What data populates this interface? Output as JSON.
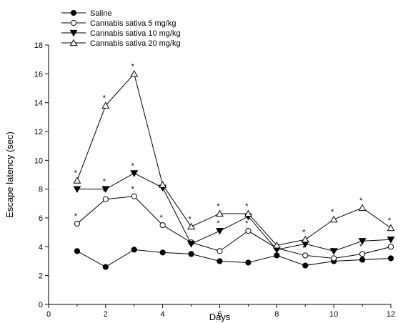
{
  "chart_data": {
    "type": "line",
    "title": "",
    "xlabel": "Days",
    "ylabel": "Escape latency (sec)",
    "xlim": [
      0,
      12
    ],
    "ylim": [
      0,
      18
    ],
    "xticks": [
      0,
      2,
      4,
      6,
      8,
      10,
      12
    ],
    "yticks": [
      0,
      2,
      4,
      6,
      8,
      10,
      12,
      14,
      16,
      18
    ],
    "grid": false,
    "legend": "top-left",
    "x": [
      1,
      2,
      3,
      4,
      5,
      6,
      7,
      8,
      9,
      10,
      11,
      12
    ],
    "series": [
      {
        "name": "Saline",
        "marker": "filled-circle",
        "values": [
          3.7,
          2.6,
          3.8,
          3.6,
          3.5,
          3.0,
          2.9,
          3.4,
          2.7,
          3.0,
          3.1,
          3.2
        ],
        "significance": [
          "",
          "",
          "",
          "",
          "",
          "",
          "",
          "",
          "",
          "",
          "",
          ""
        ]
      },
      {
        "name": "Cannabis sativa 5 mg/kg",
        "marker": "open-circle",
        "values": [
          5.6,
          7.3,
          7.5,
          5.5,
          4.3,
          3.7,
          5.1,
          3.9,
          3.4,
          3.2,
          3.5,
          4.0
        ],
        "significance": [
          "*",
          "*",
          "*",
          "*",
          "",
          "",
          "*",
          "",
          "*",
          "*",
          "*",
          "*"
        ]
      },
      {
        "name": "Cannabis sativa 10 mg/kg",
        "marker": "filled-triangle-down",
        "values": [
          8.0,
          8.0,
          9.1,
          8.1,
          4.2,
          5.1,
          6.1,
          3.8,
          4.2,
          3.7,
          4.4,
          4.5
        ],
        "significance": [
          "",
          "*",
          "*",
          "",
          "",
          "*",
          "",
          "",
          "",
          "",
          "",
          ""
        ]
      },
      {
        "name": "Cannabis sativa 20 mg/kg",
        "marker": "open-triangle-up",
        "values": [
          8.6,
          13.8,
          16.0,
          8.3,
          5.4,
          6.3,
          6.3,
          4.1,
          4.5,
          5.9,
          6.7,
          5.3
        ],
        "significance": [
          "*",
          "*",
          "*",
          "",
          "*",
          "*",
          "*",
          "",
          "*",
          "*",
          "*",
          "*"
        ]
      }
    ]
  }
}
